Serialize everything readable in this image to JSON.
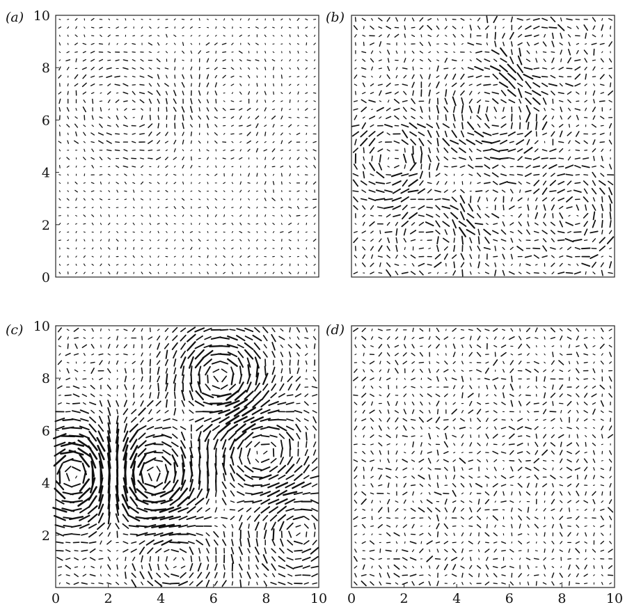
{
  "figure": {
    "colors": {
      "arrows": "#111111",
      "axes": "#222222",
      "background": "#ffffff"
    }
  },
  "chart_data": [
    {
      "panel": "(a)",
      "type": "quiver",
      "xlim": [
        0,
        10
      ],
      "ylim": [
        0,
        10
      ],
      "yticks": [
        "0",
        "2",
        "4",
        "6",
        "8",
        "10"
      ],
      "xticks": [],
      "grid": false,
      "field": {
        "grid_n": 32,
        "vortices": [
          [
            3.2,
            6.2,
            0.6
          ],
          [
            6.6,
            7.0,
            -0.4
          ],
          [
            1.4,
            6.8,
            0.35
          ],
          [
            9.2,
            4.0,
            0.3
          ]
        ],
        "noise": 0.25,
        "mean_amp": 0.18
      }
    },
    {
      "panel": "(b)",
      "type": "quiver",
      "xlim": [
        0,
        10
      ],
      "ylim": [
        0,
        10
      ],
      "yticks": [],
      "xticks": [],
      "grid": false,
      "field": {
        "grid_n": 32,
        "vortices": [
          [
            1.5,
            4.5,
            1.0
          ],
          [
            5.5,
            6.5,
            -0.9
          ],
          [
            8.5,
            2.5,
            0.9
          ],
          [
            7.0,
            8.5,
            0.7
          ],
          [
            3.0,
            1.5,
            -0.7
          ],
          [
            5.0,
            2.8,
            0.6
          ]
        ],
        "noise": 0.45,
        "mean_amp": 0.45
      }
    },
    {
      "panel": "(c)",
      "type": "quiver",
      "xlim": [
        0,
        10
      ],
      "ylim": [
        0,
        10
      ],
      "yticks": [
        "2",
        "4",
        "6",
        "8",
        "10"
      ],
      "xticks": [
        "0",
        "2",
        "4",
        "6",
        "8",
        "10"
      ],
      "grid": false,
      "field": {
        "grid_n": 32,
        "vortices": [
          [
            0.8,
            4.3,
            -2.2
          ],
          [
            3.6,
            4.3,
            2.0
          ],
          [
            6.3,
            8.0,
            1.6
          ],
          [
            7.8,
            5.2,
            -1.2
          ],
          [
            9.2,
            2.2,
            1.0
          ],
          [
            4.5,
            1.2,
            -0.9
          ]
        ],
        "noise": 0.2,
        "mean_amp": 0.7
      }
    },
    {
      "panel": "(d)",
      "type": "quiver",
      "xlim": [
        0,
        10
      ],
      "ylim": [
        0,
        10
      ],
      "yticks": [],
      "xticks": [
        "0",
        "2",
        "4",
        "6",
        "8",
        "10"
      ],
      "grid": false,
      "field": {
        "grid_n": 32,
        "vortices": [
          [
            7.0,
            7.5,
            0.4
          ],
          [
            2.0,
            2.3,
            -0.4
          ],
          [
            4.5,
            5.5,
            0.3
          ]
        ],
        "noise": 0.6,
        "mean_amp": 0.28
      }
    }
  ]
}
